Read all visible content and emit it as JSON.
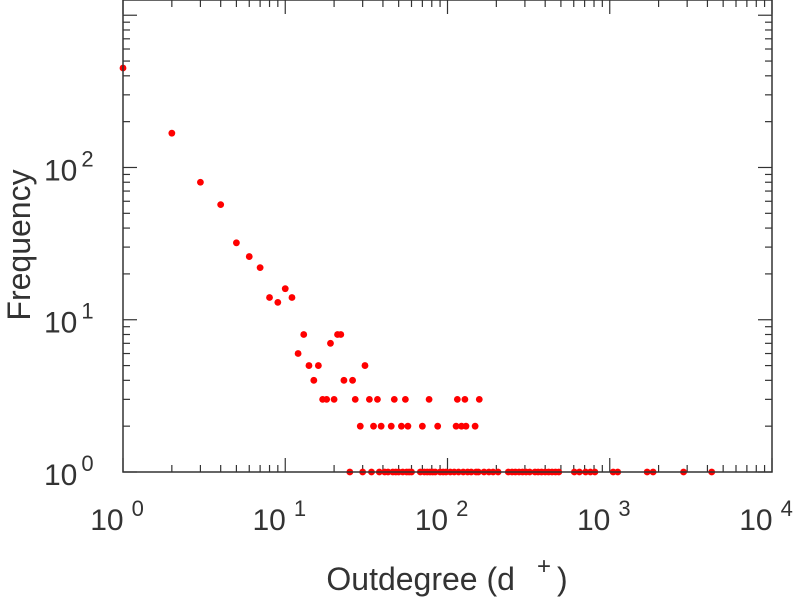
{
  "chart_data": {
    "type": "scatter",
    "title": "",
    "xlabel": "Outdegree (d",
    "xlabel_sup": "+",
    "xlabel_close": ")",
    "ylabel": "Frequency",
    "x_scale": "log",
    "y_scale": "log",
    "xlim": [
      1,
      10000
    ],
    "ylim": [
      1,
      1000
    ],
    "grid": false,
    "legend": "none",
    "point_color": "#ff0000",
    "axis_color": "#333333",
    "x_ticks": [
      {
        "base": "10",
        "exp": "0",
        "value": 1
      },
      {
        "base": "10",
        "exp": "1",
        "value": 10
      },
      {
        "base": "10",
        "exp": "2",
        "value": 100
      },
      {
        "base": "10",
        "exp": "3",
        "value": 1000
      },
      {
        "base": "10",
        "exp": "4",
        "value": 10000
      }
    ],
    "y_ticks": [
      {
        "base": "10",
        "exp": "0",
        "value": 1
      },
      {
        "base": "10",
        "exp": "1",
        "value": 10
      },
      {
        "base": "10",
        "exp": "2",
        "value": 100
      }
    ],
    "points": [
      {
        "x": 1,
        "y": 450
      },
      {
        "x": 2,
        "y": 168
      },
      {
        "x": 3,
        "y": 80
      },
      {
        "x": 4,
        "y": 57
      },
      {
        "x": 5,
        "y": 32
      },
      {
        "x": 6,
        "y": 26
      },
      {
        "x": 7,
        "y": 22
      },
      {
        "x": 8,
        "y": 14
      },
      {
        "x": 9,
        "y": 13
      },
      {
        "x": 10,
        "y": 16
      },
      {
        "x": 11,
        "y": 14
      },
      {
        "x": 12,
        "y": 6
      },
      {
        "x": 13,
        "y": 8
      },
      {
        "x": 14,
        "y": 5
      },
      {
        "x": 15,
        "y": 4
      },
      {
        "x": 16,
        "y": 5
      },
      {
        "x": 17,
        "y": 3
      },
      {
        "x": 18,
        "y": 3
      },
      {
        "x": 19,
        "y": 7
      },
      {
        "x": 20,
        "y": 3
      },
      {
        "x": 21,
        "y": 8
      },
      {
        "x": 22,
        "y": 8
      },
      {
        "x": 23,
        "y": 4
      },
      {
        "x": 25,
        "y": 1
      },
      {
        "x": 26,
        "y": 4
      },
      {
        "x": 27,
        "y": 3
      },
      {
        "x": 29,
        "y": 2
      },
      {
        "x": 30,
        "y": 1
      },
      {
        "x": 31,
        "y": 5
      },
      {
        "x": 33,
        "y": 3
      },
      {
        "x": 34,
        "y": 1
      },
      {
        "x": 35,
        "y": 2
      },
      {
        "x": 37,
        "y": 3
      },
      {
        "x": 38,
        "y": 1
      },
      {
        "x": 39,
        "y": 2
      },
      {
        "x": 41,
        "y": 1
      },
      {
        "x": 43,
        "y": 1
      },
      {
        "x": 45,
        "y": 2
      },
      {
        "x": 46,
        "y": 1
      },
      {
        "x": 47,
        "y": 3
      },
      {
        "x": 48,
        "y": 1
      },
      {
        "x": 50,
        "y": 1
      },
      {
        "x": 52,
        "y": 2
      },
      {
        "x": 53,
        "y": 1
      },
      {
        "x": 55,
        "y": 3
      },
      {
        "x": 56,
        "y": 1
      },
      {
        "x": 57,
        "y": 2
      },
      {
        "x": 58,
        "y": 1
      },
      {
        "x": 60,
        "y": 1
      },
      {
        "x": 68,
        "y": 1
      },
      {
        "x": 70,
        "y": 2
      },
      {
        "x": 72,
        "y": 1
      },
      {
        "x": 75,
        "y": 1
      },
      {
        "x": 77,
        "y": 3
      },
      {
        "x": 78,
        "y": 1
      },
      {
        "x": 81,
        "y": 1
      },
      {
        "x": 84,
        "y": 1
      },
      {
        "x": 87,
        "y": 2
      },
      {
        "x": 90,
        "y": 1
      },
      {
        "x": 94,
        "y": 1
      },
      {
        "x": 98,
        "y": 1
      },
      {
        "x": 104,
        "y": 1
      },
      {
        "x": 110,
        "y": 1
      },
      {
        "x": 113,
        "y": 2
      },
      {
        "x": 115,
        "y": 3
      },
      {
        "x": 117,
        "y": 1
      },
      {
        "x": 122,
        "y": 2
      },
      {
        "x": 125,
        "y": 1
      },
      {
        "x": 128,
        "y": 3
      },
      {
        "x": 130,
        "y": 2
      },
      {
        "x": 133,
        "y": 1
      },
      {
        "x": 140,
        "y": 1
      },
      {
        "x": 148,
        "y": 2
      },
      {
        "x": 150,
        "y": 1
      },
      {
        "x": 155,
        "y": 1
      },
      {
        "x": 157,
        "y": 3
      },
      {
        "x": 168,
        "y": 1
      },
      {
        "x": 180,
        "y": 1
      },
      {
        "x": 191,
        "y": 1
      },
      {
        "x": 205,
        "y": 1
      },
      {
        "x": 237,
        "y": 1
      },
      {
        "x": 250,
        "y": 1
      },
      {
        "x": 262,
        "y": 1
      },
      {
        "x": 276,
        "y": 1
      },
      {
        "x": 290,
        "y": 1
      },
      {
        "x": 305,
        "y": 1
      },
      {
        "x": 321,
        "y": 1
      },
      {
        "x": 346,
        "y": 1
      },
      {
        "x": 362,
        "y": 1
      },
      {
        "x": 380,
        "y": 1
      },
      {
        "x": 400,
        "y": 1
      },
      {
        "x": 420,
        "y": 1
      },
      {
        "x": 441,
        "y": 1
      },
      {
        "x": 463,
        "y": 1
      },
      {
        "x": 485,
        "y": 1
      },
      {
        "x": 605,
        "y": 1
      },
      {
        "x": 650,
        "y": 1
      },
      {
        "x": 710,
        "y": 1
      },
      {
        "x": 760,
        "y": 1
      },
      {
        "x": 810,
        "y": 1
      },
      {
        "x": 1050,
        "y": 1
      },
      {
        "x": 1120,
        "y": 1
      },
      {
        "x": 1700,
        "y": 1
      },
      {
        "x": 1850,
        "y": 1
      },
      {
        "x": 2850,
        "y": 1
      },
      {
        "x": 4250,
        "y": 1
      }
    ]
  }
}
